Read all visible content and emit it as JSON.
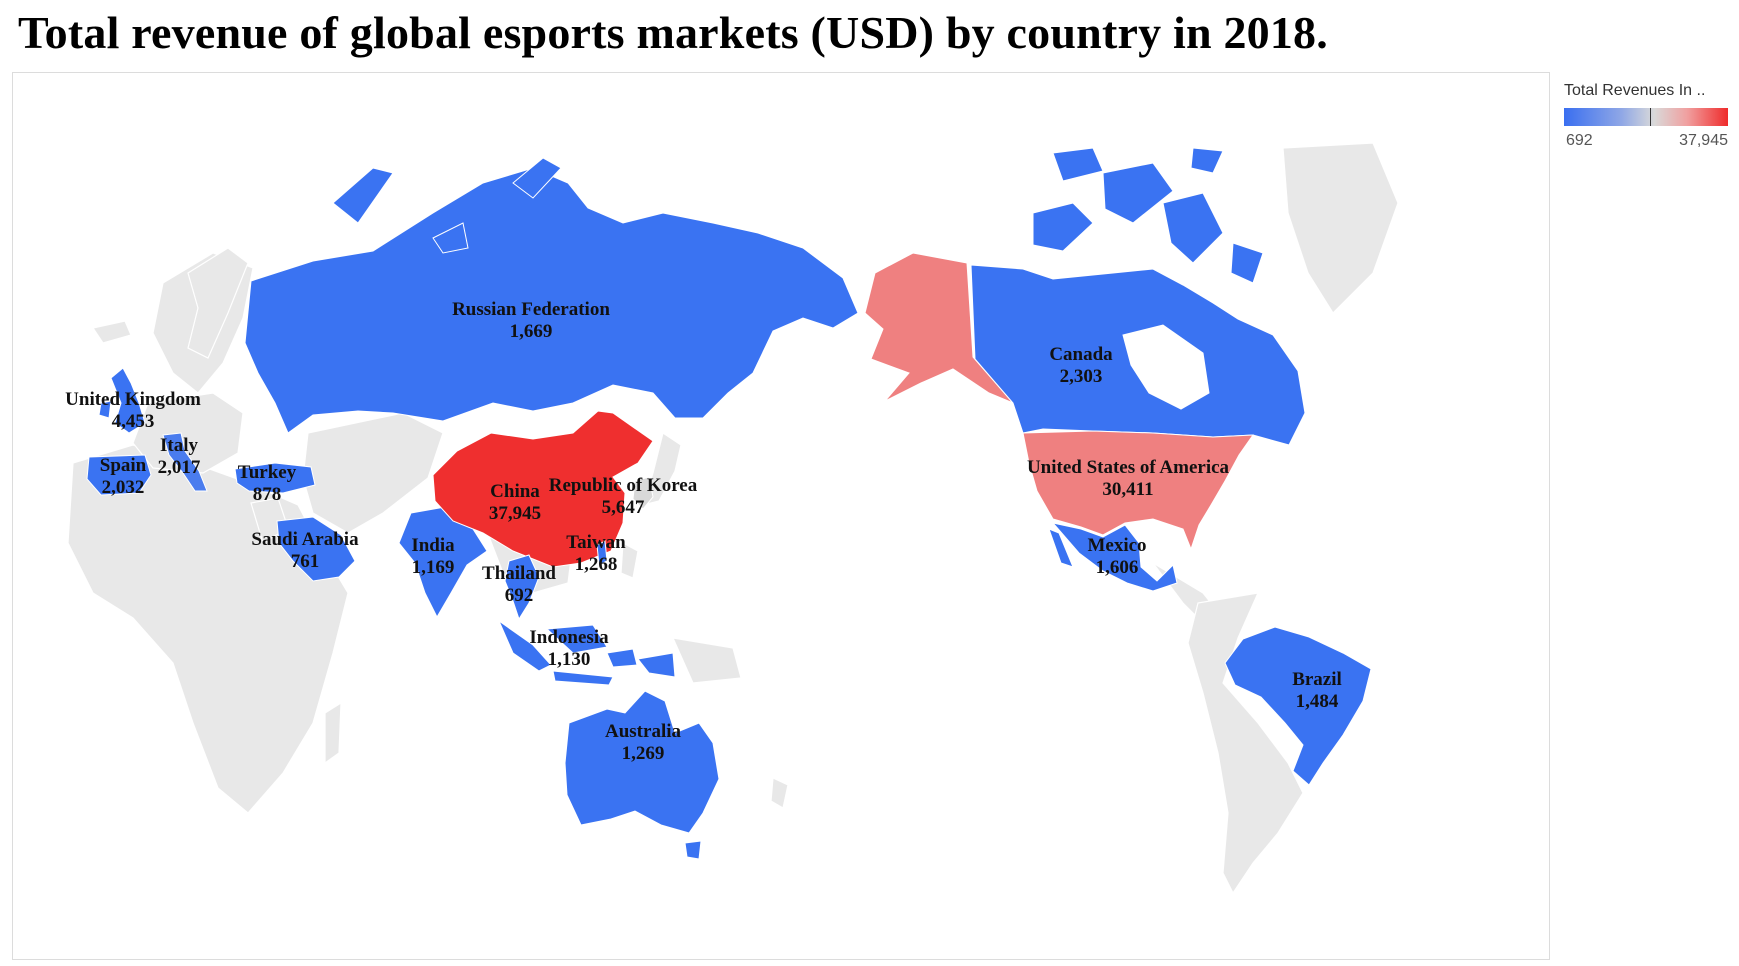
{
  "title": "Total revenue of global esports markets (USD) by country in 2018.",
  "legend": {
    "title": "Total Revenues In ..",
    "min_label": "692",
    "max_label": "37,945"
  },
  "colors": {
    "low": "#3a6ff0",
    "mid": "#ef8080",
    "high": "#ef2b2b",
    "neutral_land": "#e8e8e8",
    "border": "#ffffff"
  },
  "countries": [
    {
      "key": "russia",
      "name": "Russian Federation",
      "value": "1,669"
    },
    {
      "key": "uk",
      "name": "United Kingdom",
      "value": "4,453"
    },
    {
      "key": "italy",
      "name": "Italy",
      "value": "2,017"
    },
    {
      "key": "spain",
      "name": "Spain",
      "value": "2,032"
    },
    {
      "key": "turkey",
      "name": "Turkey",
      "value": "878"
    },
    {
      "key": "saudi",
      "name": "Saudi Arabia",
      "value": "761"
    },
    {
      "key": "india",
      "name": "India",
      "value": "1,169"
    },
    {
      "key": "china",
      "name": "China",
      "value": "37,945"
    },
    {
      "key": "korea",
      "name": "Republic of Korea",
      "value": "5,647"
    },
    {
      "key": "taiwan",
      "name": "Taiwan",
      "value": "1,268"
    },
    {
      "key": "thailand",
      "name": "Thailand",
      "value": "692"
    },
    {
      "key": "indonesia",
      "name": "Indonesia",
      "value": "1,130"
    },
    {
      "key": "australia",
      "name": "Australia",
      "value": "1,269"
    },
    {
      "key": "canada",
      "name": "Canada",
      "value": "2,303"
    },
    {
      "key": "usa",
      "name": "United States of America",
      "value": "30,411"
    },
    {
      "key": "mexico",
      "name": "Mexico",
      "value": "1,606"
    },
    {
      "key": "brazil",
      "name": "Brazil",
      "value": "1,484"
    }
  ]
}
